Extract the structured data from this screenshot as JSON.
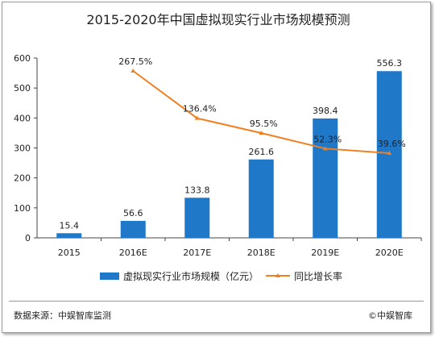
{
  "chart_data": {
    "type": "bar+line",
    "title": "2015-2020年中国虚拟现实行业市场规模预测",
    "categories": [
      "2015",
      "2016E",
      "2017E",
      "2018E",
      "2019E",
      "2020E"
    ],
    "series": [
      {
        "name": "虚拟现实行业市场规模（亿元）",
        "type": "bar",
        "values": [
          15.4,
          56.6,
          133.8,
          261.6,
          398.4,
          556.3
        ],
        "labels": [
          "15.4",
          "56.6",
          "133.8",
          "261.6",
          "398.4",
          "556.3"
        ],
        "color": "#1f78c8"
      },
      {
        "name": "同比增长率",
        "type": "line",
        "values": [
          null,
          267.5,
          136.4,
          95.5,
          52.3,
          39.6
        ],
        "labels": [
          "",
          "267.5%",
          "136.4%",
          "95.5%",
          "52.3%",
          "39.6%"
        ],
        "color": "#f07f20"
      }
    ],
    "yaxis": {
      "min": 0,
      "max": 600,
      "ticks": [
        0,
        100,
        200,
        300,
        400,
        500,
        600
      ]
    },
    "legend_position": "bottom",
    "grid": false
  },
  "footer": {
    "source": "数据来源：中娱智库监测",
    "copyright": "©中娱智库"
  }
}
